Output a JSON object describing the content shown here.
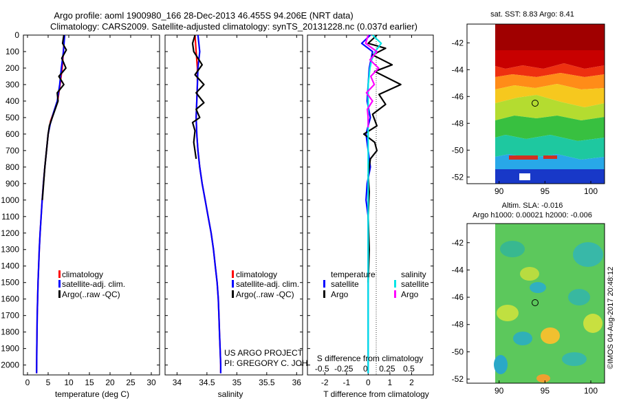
{
  "title_line1": "Argo profile: aoml 1900980_166 28-Dec-2013 46.455S 94.206E (NRT data)",
  "title_line2": "Climatology: CARS2009. Satellite-adjusted climatology: synTS_20131228.nc (0.037d earlier)",
  "project_line1": "US ARGO PROJECT",
  "project_line2": "PI: GREGORY C. JOHNSON",
  "watermark": "©IMOS 04-Aug-2017 20:48:12",
  "colors": {
    "climatology": "#ff0000",
    "satellite": "#0000ff",
    "argo": "#000000",
    "sal_satellite": "#00e5e5",
    "sal_argo": "#ff00ff"
  },
  "chart_data": [
    {
      "type": "line",
      "panel": "temperature",
      "xlabel": "temperature (deg C)",
      "xlim": [
        -1,
        32
      ],
      "xticks": [
        "0",
        "5",
        "10",
        "15",
        "20",
        "25",
        "30"
      ],
      "xtick_values": [
        0,
        5,
        10,
        15,
        20,
        25,
        30
      ],
      "ylim": [
        2060,
        0
      ],
      "yticks": [
        "0",
        "100",
        "200",
        "300",
        "400",
        "500",
        "600",
        "700",
        "800",
        "900",
        "1000",
        "1100",
        "1200",
        "1300",
        "1400",
        "1500",
        "1600",
        "1700",
        "1800",
        "1900",
        "2000"
      ],
      "ytick_values": [
        0,
        100,
        200,
        300,
        400,
        500,
        600,
        700,
        800,
        900,
        1000,
        1100,
        1200,
        1300,
        1400,
        1500,
        1600,
        1700,
        1800,
        1900,
        2000
      ],
      "legend": [
        "climatology",
        "satellite-adj. clim.",
        "Argo(..raw -QC)"
      ],
      "series": [
        {
          "name": "climatology",
          "color": "#ff0000",
          "x": [
            8.9,
            8.7,
            8.4,
            7.9,
            7.3,
            6.6,
            5.6,
            5.0,
            4.6,
            4.2,
            3.85,
            3.55,
            3.3,
            3.05,
            2.85,
            2.7,
            2.55,
            2.45,
            2.35,
            2.3,
            2.25,
            2.2
          ],
          "y": [
            0,
            100,
            200,
            300,
            400,
            450,
            520,
            600,
            700,
            800,
            900,
            1000,
            1100,
            1200,
            1300,
            1400,
            1500,
            1600,
            1700,
            1800,
            1900,
            2050
          ]
        },
        {
          "name": "satellite-adj. clim.",
          "color": "#0000ff",
          "x": [
            9.0,
            8.7,
            8.2,
            7.8,
            7.2,
            6.3,
            5.5,
            5.0,
            4.6,
            4.2,
            3.85,
            3.55,
            3.3,
            3.05,
            2.85,
            2.7,
            2.55,
            2.45,
            2.35,
            2.3,
            2.25,
            2.2
          ],
          "y": [
            0,
            100,
            200,
            300,
            400,
            470,
            540,
            600,
            700,
            800,
            900,
            1000,
            1100,
            1200,
            1300,
            1400,
            1500,
            1600,
            1700,
            1800,
            1900,
            2050
          ]
        },
        {
          "name": "Argo(..raw -QC)",
          "color": "#000000",
          "x": [
            8.8,
            8.5,
            9.4,
            8.3,
            9.3,
            7.6,
            8.8,
            7.2,
            7.4,
            6.7,
            6.0,
            5.3,
            5.0,
            4.6,
            4.2,
            3.9,
            3.6
          ],
          "y": [
            0,
            50,
            90,
            140,
            200,
            250,
            300,
            350,
            400,
            450,
            500,
            550,
            600,
            700,
            800,
            900,
            1000
          ]
        }
      ]
    },
    {
      "type": "line",
      "panel": "salinity",
      "xlabel": "salinity",
      "xlim": [
        33.8,
        36.1
      ],
      "xticks": [
        "34",
        "34.5",
        "35",
        "35.5",
        "36"
      ],
      "xtick_values": [
        34,
        34.5,
        35,
        35.5,
        36
      ],
      "ylim": [
        2060,
        0
      ],
      "legend": [
        "climatology",
        "satellite-adj. clim.",
        "Argo(..raw -QC)"
      ],
      "series": [
        {
          "name": "climatology",
          "color": "#ff0000",
          "x": [
            34.3,
            34.32,
            34.34,
            34.34,
            34.33,
            34.32,
            34.33,
            34.35,
            34.38,
            34.42,
            34.47,
            34.52,
            34.57,
            34.61,
            34.64,
            34.67,
            34.69,
            34.7,
            34.71,
            34.72,
            34.73,
            34.73
          ],
          "y": [
            0,
            100,
            200,
            300,
            400,
            500,
            600,
            700,
            800,
            900,
            1000,
            1100,
            1200,
            1300,
            1400,
            1500,
            1600,
            1700,
            1800,
            1900,
            2000,
            2050
          ]
        },
        {
          "name": "satellite-adj. clim.",
          "color": "#0000ff",
          "x": [
            34.35,
            34.38,
            34.35,
            34.34,
            34.33,
            34.32,
            34.33,
            34.35,
            34.38,
            34.42,
            34.47,
            34.52,
            34.57,
            34.61,
            34.64,
            34.67,
            34.69,
            34.7,
            34.71,
            34.72,
            34.73,
            34.73
          ],
          "y": [
            0,
            100,
            200,
            300,
            400,
            500,
            600,
            700,
            800,
            900,
            1000,
            1100,
            1200,
            1300,
            1400,
            1500,
            1600,
            1700,
            1800,
            1900,
            2000,
            2050
          ]
        },
        {
          "name": "Argo(..raw -QC)",
          "color": "#000000",
          "x": [
            34.3,
            34.26,
            34.28,
            34.42,
            34.3,
            34.45,
            34.32,
            34.45,
            34.32,
            34.38,
            34.26,
            34.3,
            34.28,
            34.32
          ],
          "y": [
            0,
            50,
            100,
            180,
            240,
            300,
            350,
            410,
            450,
            500,
            530,
            580,
            650,
            750
          ]
        }
      ]
    },
    {
      "type": "line",
      "panel": "difference",
      "xlabel": "T difference from climatology",
      "xlabel_top": "S difference from climatology",
      "xlim": [
        -2.8,
        3.0
      ],
      "xticks": [
        "-2",
        "-1",
        "0",
        "1",
        "2"
      ],
      "xtick_values": [
        -2,
        -1,
        0,
        1,
        2
      ],
      "xticks_top": [
        "-0.5",
        "-0.25",
        "0",
        "0.25",
        "0.5"
      ],
      "xticks_top_values": [
        -0.5,
        -0.25,
        0,
        0.25,
        0.5
      ],
      "ylim": [
        2060,
        0
      ],
      "legend_titles": [
        "temperature",
        "salinity"
      ],
      "legend": [
        "satellite",
        "Argo",
        "satellite",
        "Argo"
      ],
      "series": [
        {
          "name": "temperature satellite",
          "color": "#0000ff",
          "x": [
            0.1,
            -0.3,
            0.2,
            0.05,
            0.0,
            -0.05,
            0.1,
            -0.1,
            0.0,
            0.1,
            -0.05,
            -0.1,
            0.0,
            0.0,
            0.0,
            0.0,
            0.0,
            0.0,
            0.0,
            0.0,
            0.0
          ],
          "y": [
            0,
            50,
            100,
            200,
            300,
            400,
            500,
            600,
            700,
            800,
            900,
            1000,
            1100,
            1200,
            1300,
            1400,
            1500,
            1600,
            1700,
            1800,
            2050
          ]
        },
        {
          "name": "temperature Argo",
          "color": "#000000",
          "x": [
            0.4,
            0.0,
            0.8,
            0.2,
            1.1,
            0.3,
            1.5,
            0.5,
            0.8,
            0.2,
            0.4,
            -0.2,
            0.3,
            0.4,
            0.1,
            0.0,
            0.05,
            0.0,
            0.05,
            0.0
          ],
          "y": [
            0,
            50,
            80,
            120,
            180,
            220,
            300,
            360,
            420,
            480,
            550,
            600,
            650,
            700,
            750,
            850,
            950,
            1100,
            1300,
            1500
          ]
        },
        {
          "name": "salinity satellite",
          "color": "#00e5e5",
          "x": [
            0.05,
            0.15,
            0.08,
            0.04,
            0.02,
            0.0,
            0.0,
            0.0,
            0.0,
            0.0,
            0.0,
            0.0,
            0.0,
            0.0,
            0.0,
            0.0,
            0.0,
            0.0,
            0.0,
            0.0
          ],
          "y": [
            0,
            50,
            100,
            150,
            200,
            300,
            400,
            500,
            600,
            700,
            800,
            900,
            1000,
            1100,
            1200,
            1300,
            1400,
            1500,
            1700,
            2050
          ]
        },
        {
          "name": "salinity Argo",
          "color": "#ff00ff",
          "x": [
            0.0,
            -0.03,
            0.1,
            0.02,
            0.12,
            0.03,
            0.07,
            -0.02,
            0.05,
            -0.01,
            0.0,
            0.0
          ],
          "y": [
            0,
            50,
            100,
            150,
            200,
            250,
            300,
            350,
            400,
            450,
            500,
            560
          ]
        }
      ]
    },
    {
      "type": "heatmap",
      "panel": "sst_map",
      "title": "sat. SST: 8.83 Argo: 8.41",
      "xticks": [
        "90",
        "95",
        "100"
      ],
      "xtick_values": [
        90,
        95,
        100
      ],
      "yticks": [
        "-42",
        "-44",
        "-46",
        "-48",
        "-50",
        "-52"
      ],
      "ytick_values": [
        -42,
        -44,
        -46,
        -48,
        -50,
        -52
      ],
      "xlim": [
        86.5,
        101.5
      ],
      "ylim": [
        -52.5,
        -40.6
      ],
      "data_lon_range": [
        90,
        101.5
      ],
      "profile_location": [
        94.206,
        -46.455
      ]
    },
    {
      "type": "heatmap",
      "panel": "sla_map",
      "title": "Altim. SLA: -0.016",
      "subtitle": "Argo h1000: 0.00021 h2000: -0.006",
      "xticks": [
        "90",
        "95",
        "100"
      ],
      "xtick_values": [
        90,
        95,
        100
      ],
      "yticks": [
        "-42",
        "-44",
        "-46",
        "-48",
        "-50",
        "-52"
      ],
      "ytick_values": [
        -42,
        -44,
        -46,
        -48,
        -50,
        -52
      ],
      "xlim": [
        86.5,
        101.5
      ],
      "ylim": [
        -52.3,
        -40.6
      ],
      "data_lon_range": [
        90,
        101.5
      ],
      "profile_location": [
        94.206,
        -46.455
      ]
    }
  ]
}
